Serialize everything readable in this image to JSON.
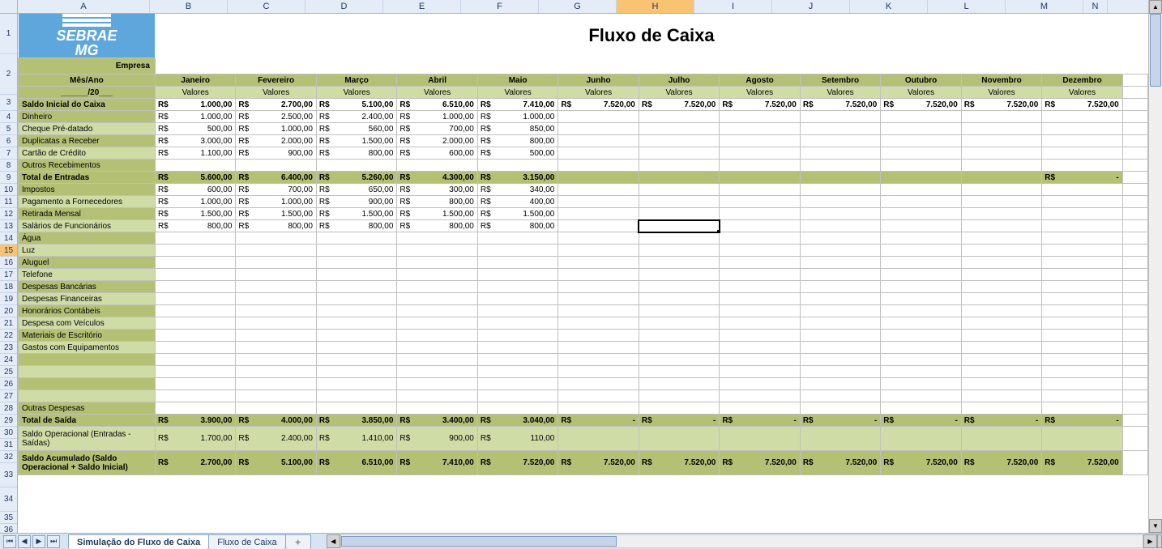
{
  "logo": {
    "line1": "SEBRAE",
    "line2": "MG"
  },
  "title": "Fluxo de Caixa",
  "colLetters": [
    "A",
    "B",
    "C",
    "D",
    "E",
    "F",
    "G",
    "H",
    "I",
    "J",
    "K",
    "L",
    "M",
    "N"
  ],
  "activeCol": "H",
  "activeRow": 15,
  "colWidths": {
    "A": 163,
    "data": 96,
    "N": 30
  },
  "rowHeights": {
    "title": 50,
    "default": 15,
    "wrap": 30
  },
  "colors": {
    "oliveDark": "#b4c175",
    "oliveLight": "#d0dca6",
    "logoBg": "#5da7dd",
    "headerBg": "#e4ecf7",
    "headerBorder": "#9eb6ce",
    "activeHeader": "#f8c471",
    "gridLine": "#c0c0c0"
  },
  "labels": {
    "empresa": "Empresa",
    "mesAno": "Mês/Ano",
    "dateLine": "______/20___",
    "valores": "Valores"
  },
  "months": [
    "Janeiro",
    "Fevereiro",
    "Março",
    "Abril",
    "Maio",
    "Junho",
    "Julho",
    "Agosto",
    "Setembro",
    "Outubro",
    "Novembro",
    "Dezembro"
  ],
  "rows": [
    {
      "n": 5,
      "label": "Saldo Inicial do Caixa",
      "bold": true,
      "labelStyle": "olive-b",
      "vals": [
        "1.000,00",
        "2.700,00",
        "5.100,00",
        "6.510,00",
        "7.410,00",
        "7.520,00",
        "7.520,00",
        "7.520,00",
        "7.520,00",
        "7.520,00",
        "7.520,00",
        "7.520,00"
      ],
      "valBold": true
    },
    {
      "n": 6,
      "label": "Dinheiro",
      "labelStyle": "olive",
      "vals": [
        "1.000,00",
        "2.500,00",
        "2.400,00",
        "1.000,00",
        "1.000,00",
        "",
        "",
        "",
        "",
        "",
        "",
        ""
      ]
    },
    {
      "n": 7,
      "label": "Cheque Pré-datado",
      "labelStyle": "light",
      "vals": [
        "500,00",
        "1.000,00",
        "560,00",
        "700,00",
        "850,00",
        "",
        "",
        "",
        "",
        "",
        "",
        ""
      ]
    },
    {
      "n": 8,
      "label": "Duplicatas a Receber",
      "labelStyle": "olive",
      "vals": [
        "3.000,00",
        "2.000,00",
        "1.500,00",
        "2.000,00",
        "800,00",
        "",
        "",
        "",
        "",
        "",
        "",
        ""
      ]
    },
    {
      "n": 9,
      "label": "Cartão de Crédito",
      "labelStyle": "light",
      "vals": [
        "1.100,00",
        "900,00",
        "800,00",
        "600,00",
        "500,00",
        "",
        "",
        "",
        "",
        "",
        "",
        ""
      ]
    },
    {
      "n": 10,
      "label": "Outros Recebimentos",
      "labelStyle": "olive",
      "vals": [
        "",
        "",
        "",
        "",
        "",
        "",
        "",
        "",
        "",
        "",
        "",
        ""
      ]
    },
    {
      "n": 11,
      "label": "Total de Entradas",
      "bold": true,
      "labelStyle": "olive-b",
      "vals": [
        "5.600,00",
        "6.400,00",
        "5.260,00",
        "4.300,00",
        "3.150,00",
        "",
        "",
        "",
        "",
        "",
        "",
        "-"
      ],
      "valBold": true,
      "valFill": "olive"
    },
    {
      "n": 12,
      "label": "Impostos",
      "labelStyle": "olive",
      "vals": [
        "600,00",
        "700,00",
        "650,00",
        "300,00",
        "340,00",
        "",
        "",
        "",
        "",
        "",
        "",
        ""
      ]
    },
    {
      "n": 13,
      "label": "Pagamento a Fornecedores",
      "labelStyle": "light",
      "vals": [
        "1.000,00",
        "1.000,00",
        "900,00",
        "800,00",
        "400,00",
        "",
        "",
        "",
        "",
        "",
        "",
        ""
      ]
    },
    {
      "n": 14,
      "label": "Retirada Mensal",
      "labelStyle": "olive",
      "vals": [
        "1.500,00",
        "1.500,00",
        "1.500,00",
        "1.500,00",
        "1.500,00",
        "",
        "",
        "",
        "",
        "",
        "",
        ""
      ]
    },
    {
      "n": 15,
      "label": "Salários de Funcionários",
      "labelStyle": "light",
      "vals": [
        "800,00",
        "800,00",
        "800,00",
        "800,00",
        "800,00",
        "",
        "",
        "",
        "",
        "",
        "",
        ""
      ]
    },
    {
      "n": 16,
      "label": "Água",
      "labelStyle": "olive",
      "vals": [
        "",
        "",
        "",
        "",
        "",
        "",
        "",
        "",
        "",
        "",
        "",
        ""
      ]
    },
    {
      "n": 17,
      "label": "Luz",
      "labelStyle": "light",
      "vals": [
        "",
        "",
        "",
        "",
        "",
        "",
        "",
        "",
        "",
        "",
        "",
        ""
      ]
    },
    {
      "n": 18,
      "label": "Aluguel",
      "labelStyle": "olive",
      "vals": [
        "",
        "",
        "",
        "",
        "",
        "",
        "",
        "",
        "",
        "",
        "",
        ""
      ]
    },
    {
      "n": 19,
      "label": "Telefone",
      "labelStyle": "light",
      "vals": [
        "",
        "",
        "",
        "",
        "",
        "",
        "",
        "",
        "",
        "",
        "",
        ""
      ]
    },
    {
      "n": 20,
      "label": "Despesas Bancárias",
      "labelStyle": "olive",
      "vals": [
        "",
        "",
        "",
        "",
        "",
        "",
        "",
        "",
        "",
        "",
        "",
        ""
      ]
    },
    {
      "n": 21,
      "label": "Despesas Financeiras",
      "labelStyle": "light",
      "vals": [
        "",
        "",
        "",
        "",
        "",
        "",
        "",
        "",
        "",
        "",
        "",
        ""
      ]
    },
    {
      "n": 22,
      "label": "Honorários Contábeis",
      "labelStyle": "olive",
      "vals": [
        "",
        "",
        "",
        "",
        "",
        "",
        "",
        "",
        "",
        "",
        "",
        ""
      ]
    },
    {
      "n": 23,
      "label": "Despesa com Veículos",
      "labelStyle": "light",
      "vals": [
        "",
        "",
        "",
        "",
        "",
        "",
        "",
        "",
        "",
        "",
        "",
        ""
      ]
    },
    {
      "n": 24,
      "label": "Materiais de Escritório",
      "labelStyle": "olive",
      "vals": [
        "",
        "",
        "",
        "",
        "",
        "",
        "",
        "",
        "",
        "",
        "",
        ""
      ]
    },
    {
      "n": 25,
      "label": "Gastos com Equipamentos",
      "labelStyle": "light",
      "vals": [
        "",
        "",
        "",
        "",
        "",
        "",
        "",
        "",
        "",
        "",
        "",
        ""
      ]
    },
    {
      "n": 26,
      "label": "",
      "labelStyle": "olive",
      "vals": [
        "",
        "",
        "",
        "",
        "",
        "",
        "",
        "",
        "",
        "",
        "",
        ""
      ]
    },
    {
      "n": 27,
      "label": "",
      "labelStyle": "light",
      "vals": [
        "",
        "",
        "",
        "",
        "",
        "",
        "",
        "",
        "",
        "",
        "",
        ""
      ]
    },
    {
      "n": 28,
      "label": "",
      "labelStyle": "olive",
      "vals": [
        "",
        "",
        "",
        "",
        "",
        "",
        "",
        "",
        "",
        "",
        "",
        ""
      ]
    },
    {
      "n": 29,
      "label": "",
      "labelStyle": "light",
      "vals": [
        "",
        "",
        "",
        "",
        "",
        "",
        "",
        "",
        "",
        "",
        "",
        ""
      ]
    },
    {
      "n": 30,
      "label": "Outras Despesas",
      "labelStyle": "olive",
      "vals": [
        "",
        "",
        "",
        "",
        "",
        "",
        "",
        "",
        "",
        "",
        "",
        ""
      ]
    },
    {
      "n": 31,
      "label": "Total de Saída",
      "bold": true,
      "labelStyle": "olive-b",
      "vals": [
        "3.900,00",
        "4.000,00",
        "3.850,00",
        "3.400,00",
        "3.040,00",
        "-",
        "-",
        "-",
        "-",
        "-",
        "-",
        "-"
      ],
      "valBold": true,
      "valFill": "olive"
    },
    {
      "n": 32,
      "label": "Saldo Operacional (Entradas - Saídas)",
      "labelStyle": "light",
      "tall": true,
      "vals": [
        "1.700,00",
        "2.400,00",
        "1.410,00",
        "900,00",
        "110,00",
        "",
        "",
        "",
        "",
        "",
        "",
        ""
      ],
      "valFill": "light"
    },
    {
      "n": 33,
      "label": "Saldo Acumulado (Saldo Operacional + Saldo Inicial)",
      "bold": true,
      "labelStyle": "olive-b",
      "tall": true,
      "vals": [
        "2.700,00",
        "5.100,00",
        "6.510,00",
        "7.410,00",
        "7.520,00",
        "7.520,00",
        "7.520,00",
        "7.520,00",
        "7.520,00",
        "7.520,00",
        "7.520,00",
        "7.520,00"
      ],
      "valBold": true,
      "valFill": "olive"
    }
  ],
  "extraBlankRows": [
    34,
    35,
    36
  ],
  "tabs": {
    "active": "Simulação do Fluxo de Caixa",
    "others": [
      "Fluxo de Caixa"
    ]
  },
  "currency": "R$"
}
